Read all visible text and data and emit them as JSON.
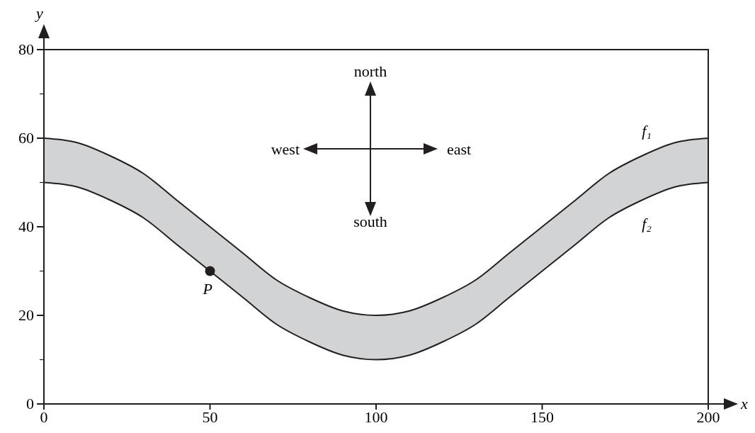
{
  "chart_data": {
    "type": "line",
    "xlabel": "x",
    "ylabel": "y",
    "xlim": [
      0,
      200
    ],
    "xticks": [
      0,
      50,
      100,
      150,
      200
    ],
    "ylim": [
      0,
      80
    ],
    "yticks": [
      0,
      {
        "value": 10,
        "label": null
      },
      20,
      {
        "value": 30,
        "label": null
      },
      40,
      {
        "value": 50,
        "label": null
      },
      60,
      {
        "value": 70,
        "label": null
      },
      80
    ],
    "x": [
      0,
      10,
      20,
      30,
      40,
      50,
      60,
      70,
      80,
      90,
      100,
      110,
      120,
      130,
      140,
      150,
      160,
      170,
      180,
      190,
      200
    ],
    "grid": false,
    "line_style": "solid",
    "series": [
      {
        "name": "f₁",
        "color": "#231f20",
        "values": [
          60,
          59,
          56,
          52,
          46,
          40,
          34,
          28,
          24,
          21,
          20,
          21,
          24,
          28,
          34,
          40,
          46,
          52,
          56,
          59,
          60
        ],
        "lower": [
          50,
          49,
          46,
          42,
          36,
          30,
          24,
          18,
          14,
          11,
          10,
          11,
          14,
          18,
          24,
          30,
          36,
          42,
          46,
          49,
          50
        ],
        "upper": [
          60,
          59,
          56,
          52,
          46,
          40,
          34,
          28,
          24,
          21,
          20,
          21,
          24,
          28,
          34,
          40,
          46,
          52,
          56,
          59,
          60
        ]
      },
      {
        "name": "f₂",
        "color": "#231f20",
        "values": [
          50,
          49,
          46,
          42,
          36,
          30,
          24,
          18,
          14,
          11,
          10,
          11,
          14,
          18,
          24,
          30,
          36,
          42,
          46,
          49,
          50
        ]
      },
      {
        "name": "P",
        "type": "scatter",
        "color": "#231f20",
        "marker": "circle",
        "x": [
          50
        ],
        "values": [
          30
        ]
      }
    ],
    "annotations": [
      "north",
      "south",
      "west",
      "east"
    ]
  }
}
